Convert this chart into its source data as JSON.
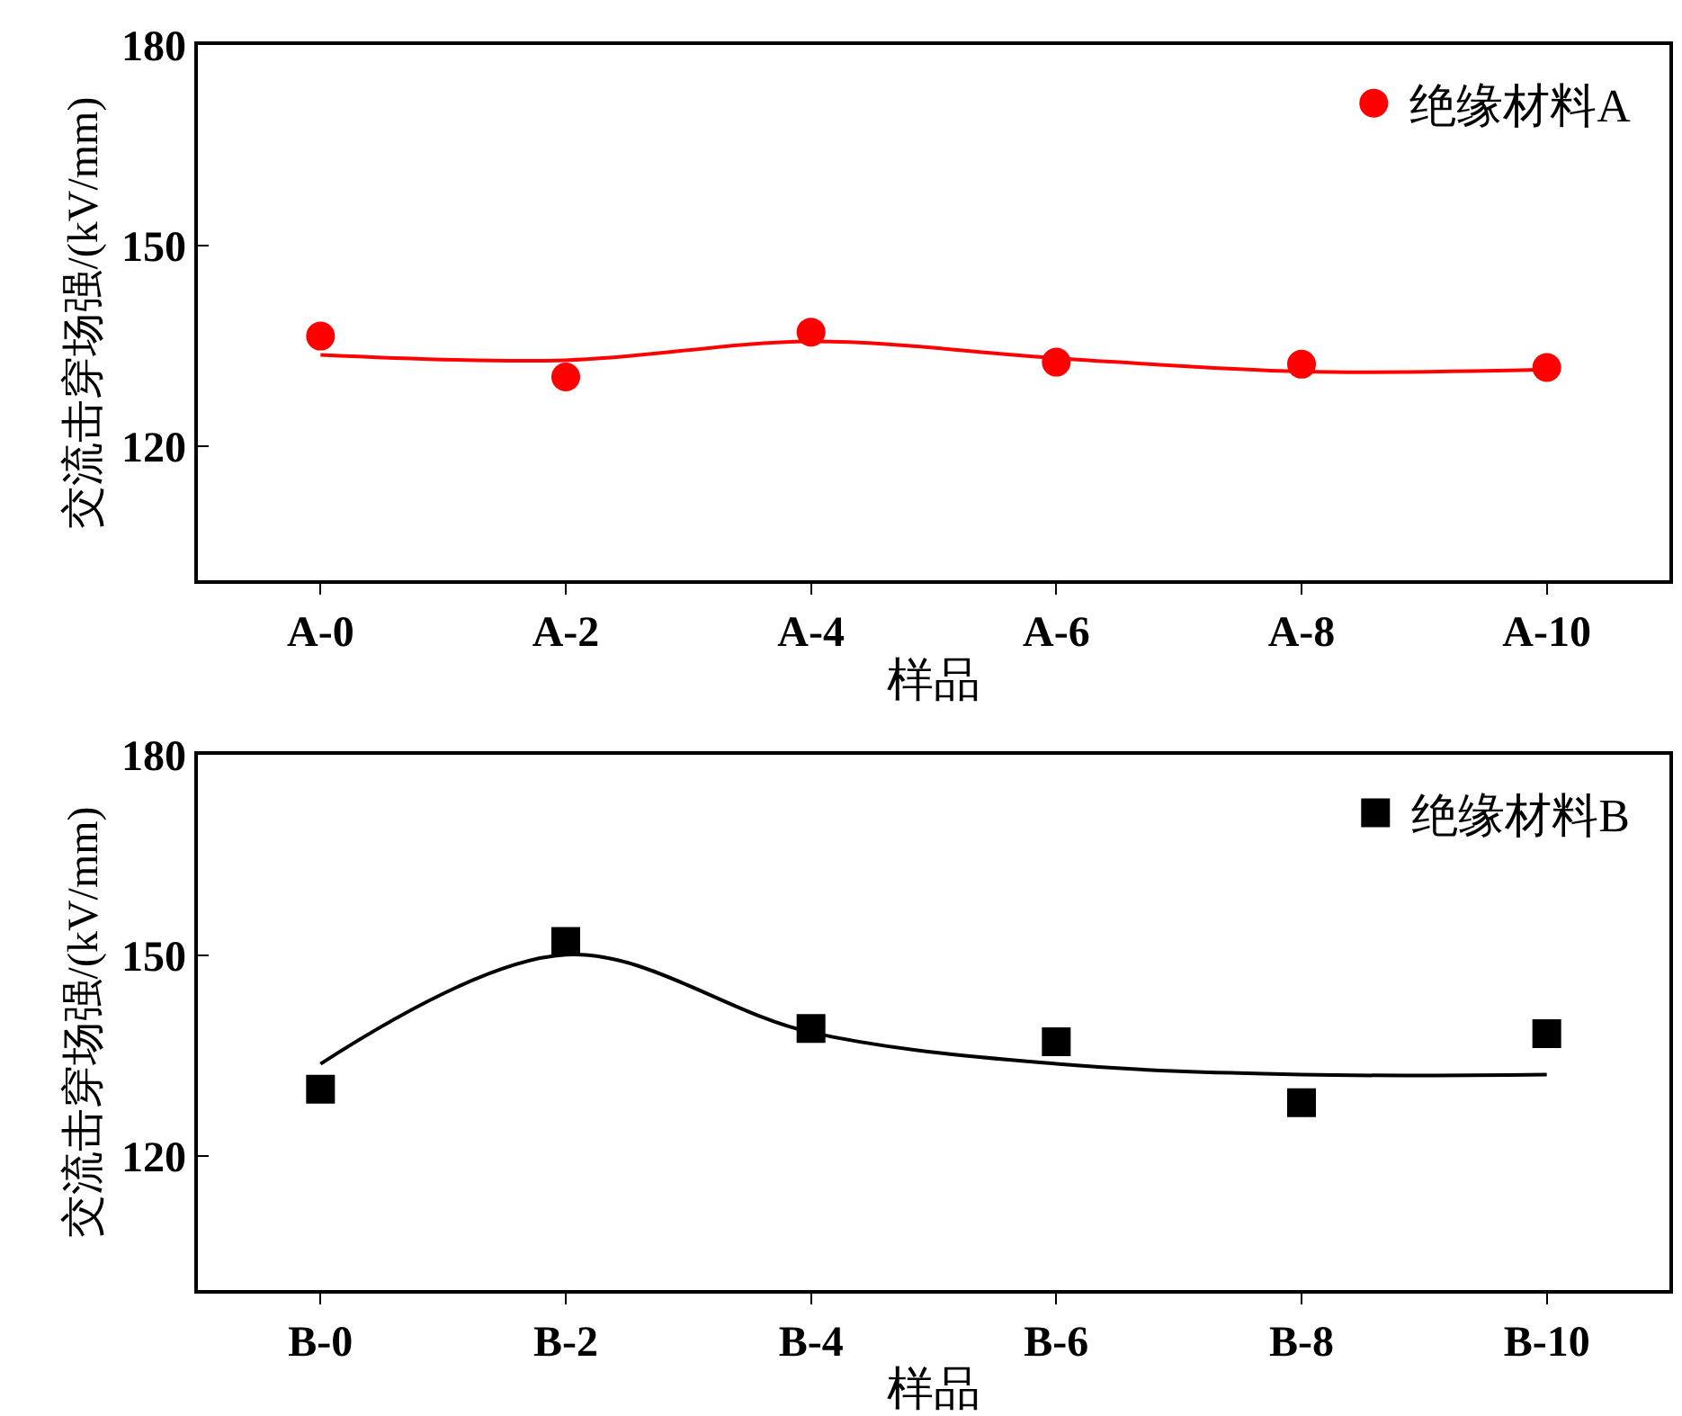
{
  "chart_data": [
    {
      "type": "scatter",
      "xlabel": "样品",
      "ylabel": "交流击穿场强/(kV/mm)",
      "categories": [
        "A-0",
        "A-2",
        "A-4",
        "A-6",
        "A-8",
        "A-10"
      ],
      "ylim": [
        100,
        180
      ],
      "yticks": [
        120,
        150,
        180
      ],
      "legend": "top right",
      "marker": "circle",
      "series": [
        {
          "name": "绝缘材料A",
          "color": "#ff0000",
          "values": [
            136.5,
            130.4,
            137.1,
            132.6,
            132.3,
            131.8
          ]
        },
        {
          "color": "#ff0000",
          "type": "line",
          "marker": "none",
          "values": [
            133.7,
            132.9,
            135.7,
            133.2,
            131.2,
            131.5
          ]
        }
      ]
    },
    {
      "type": "scatter",
      "xlabel": "样品",
      "ylabel": "交流击穿场强/(kV/mm)",
      "categories": [
        "B-0",
        "B-2",
        "B-4",
        "B-6",
        "B-8",
        "B-10"
      ],
      "ylim": [
        100,
        180
      ],
      "yticks": [
        120,
        150,
        180
      ],
      "legend": "top right",
      "marker": "square",
      "series": [
        {
          "name": "绝缘材料B",
          "color": "#000000",
          "values": [
            130.0,
            152.1,
            139.1,
            137.1,
            128.0,
            138.3
          ]
        },
        {
          "color": "#000000",
          "type": "line",
          "marker": "none",
          "values": [
            133.8,
            150.1,
            138.5,
            133.8,
            132.2,
            132.2
          ]
        }
      ]
    }
  ]
}
